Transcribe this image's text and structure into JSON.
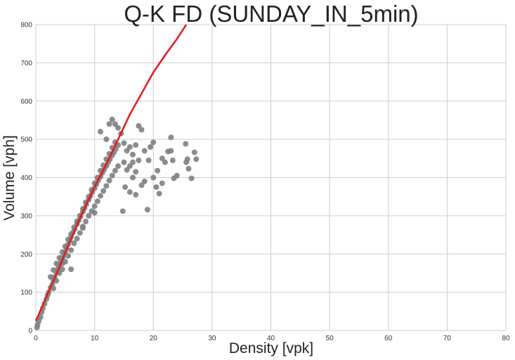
{
  "chart_data": {
    "type": "scatter",
    "title": "Q-K FD (SUNDAY_IN_5min)",
    "xlabel": "Density [vpk]",
    "ylabel": "Volume [vph]",
    "xlim": [
      0,
      80
    ],
    "ylim": [
      0,
      800
    ],
    "xticks": [
      0,
      10,
      20,
      30,
      40,
      50,
      60,
      70,
      80
    ],
    "yticks": [
      0,
      100,
      200,
      300,
      400,
      500,
      600,
      700,
      800
    ],
    "grid": true,
    "colors": {
      "points": "#808080",
      "fit_line": "#e31a1c",
      "grid": "#cccccc"
    },
    "scatter_points": [
      [
        0.2,
        8
      ],
      [
        0.3,
        15
      ],
      [
        0.5,
        25
      ],
      [
        0.8,
        35
      ],
      [
        1.0,
        48
      ],
      [
        1.2,
        58
      ],
      [
        1.5,
        70
      ],
      [
        1.8,
        82
      ],
      [
        2.0,
        92
      ],
      [
        2.2,
        100
      ],
      [
        2.5,
        112
      ],
      [
        2.8,
        120
      ],
      [
        3.0,
        132
      ],
      [
        3.2,
        140
      ],
      [
        3.5,
        152
      ],
      [
        3.8,
        162
      ],
      [
        4.0,
        172
      ],
      [
        4.3,
        182
      ],
      [
        4.6,
        192
      ],
      [
        5.0,
        205
      ],
      [
        5.2,
        215
      ],
      [
        5.5,
        225
      ],
      [
        5.8,
        236
      ],
      [
        6.0,
        245
      ],
      [
        6.3,
        256
      ],
      [
        6.6,
        265
      ],
      [
        7.0,
        278
      ],
      [
        7.3,
        288
      ],
      [
        7.6,
        298
      ],
      [
        8.0,
        310
      ],
      [
        8.3,
        320
      ],
      [
        8.6,
        330
      ],
      [
        9.0,
        342
      ],
      [
        9.3,
        352
      ],
      [
        9.6,
        362
      ],
      [
        10.0,
        372
      ],
      [
        10.3,
        382
      ],
      [
        10.6,
        392
      ],
      [
        11.0,
        402
      ],
      [
        11.3,
        412
      ],
      [
        11.6,
        420
      ],
      [
        12.0,
        430
      ],
      [
        12.3,
        440
      ],
      [
        12.6,
        448
      ],
      [
        13.0,
        458
      ],
      [
        13.3,
        466
      ],
      [
        13.6,
        475
      ],
      [
        14.0,
        485
      ],
      [
        3.0,
        110
      ],
      [
        3.5,
        130
      ],
      [
        4.0,
        150
      ],
      [
        4.5,
        160
      ],
      [
        5.0,
        180
      ],
      [
        5.5,
        195
      ],
      [
        6.0,
        210
      ],
      [
        6.5,
        228
      ],
      [
        7.0,
        240
      ],
      [
        7.5,
        255
      ],
      [
        8.0,
        272
      ],
      [
        8.5,
        285
      ],
      [
        9.0,
        300
      ],
      [
        9.5,
        312
      ],
      [
        10.0,
        325
      ],
      [
        10.5,
        338
      ],
      [
        11.0,
        352
      ],
      [
        11.5,
        365
      ],
      [
        12.0,
        378
      ],
      [
        12.5,
        392
      ],
      [
        13.0,
        405
      ],
      [
        13.5,
        418
      ],
      [
        14.0,
        430
      ],
      [
        2.5,
        140
      ],
      [
        3.0,
        158
      ],
      [
        3.5,
        175
      ],
      [
        4.0,
        190
      ],
      [
        4.5,
        205
      ],
      [
        5.0,
        220
      ],
      [
        5.5,
        238
      ],
      [
        6.0,
        252
      ],
      [
        6.5,
        270
      ],
      [
        7.0,
        285
      ],
      [
        7.5,
        300
      ],
      [
        8.0,
        318
      ],
      [
        8.5,
        335
      ],
      [
        9.0,
        350
      ],
      [
        9.5,
        368
      ],
      [
        10.0,
        385
      ],
      [
        10.5,
        400
      ],
      [
        11.0,
        418
      ],
      [
        11.5,
        432
      ],
      [
        12.0,
        448
      ],
      [
        12.5,
        462
      ],
      [
        13.0,
        478
      ],
      [
        13.5,
        492
      ],
      [
        4.5,
        175
      ],
      [
        6.0,
        160
      ],
      [
        8.0,
        268
      ],
      [
        10.0,
        308
      ],
      [
        11.0,
        520
      ],
      [
        12.0,
        500
      ],
      [
        12.5,
        540
      ],
      [
        13.0,
        552
      ],
      [
        13.5,
        540
      ],
      [
        14.0,
        530
      ],
      [
        14.5,
        515
      ],
      [
        15.0,
        490
      ],
      [
        15.5,
        470
      ],
      [
        16.0,
        480
      ],
      [
        16.5,
        460
      ],
      [
        17.0,
        485
      ],
      [
        17.5,
        535
      ],
      [
        18.0,
        525
      ],
      [
        14.8,
        312
      ],
      [
        15.2,
        375
      ],
      [
        16.0,
        362
      ],
      [
        16.5,
        400
      ],
      [
        17.0,
        355
      ],
      [
        18.0,
        380
      ],
      [
        18.5,
        390
      ],
      [
        19.0,
        316
      ],
      [
        19.2,
        445
      ],
      [
        19.5,
        480
      ],
      [
        20.0,
        492
      ],
      [
        20.0,
        400
      ],
      [
        20.5,
        375
      ],
      [
        20.7,
        418
      ],
      [
        21.0,
        358
      ],
      [
        21.5,
        385
      ],
      [
        22.0,
        440
      ],
      [
        22.5,
        468
      ],
      [
        23.0,
        505
      ],
      [
        23.0,
        470
      ],
      [
        23.3,
        445
      ],
      [
        23.5,
        398
      ],
      [
        24.0,
        405
      ],
      [
        25.5,
        488
      ],
      [
        25.6,
        440
      ],
      [
        25.8,
        448
      ],
      [
        26.0,
        423
      ],
      [
        26.5,
        398
      ],
      [
        27.0,
        466
      ],
      [
        27.3,
        448
      ],
      [
        15.0,
        440
      ],
      [
        15.5,
        420
      ],
      [
        16.0,
        430
      ],
      [
        16.5,
        440
      ],
      [
        17.0,
        415
      ],
      [
        17.5,
        445
      ],
      [
        18.5,
        470
      ],
      [
        21.5,
        450
      ]
    ],
    "fit_line": [
      [
        0,
        25
      ],
      [
        2,
        95
      ],
      [
        4,
        165
      ],
      [
        6,
        240
      ],
      [
        8,
        310
      ],
      [
        10,
        375
      ],
      [
        12,
        435
      ],
      [
        14,
        500
      ],
      [
        16,
        565
      ],
      [
        18,
        620
      ],
      [
        20,
        675
      ],
      [
        22,
        720
      ],
      [
        24,
        762
      ],
      [
        25.6,
        800
      ]
    ]
  }
}
